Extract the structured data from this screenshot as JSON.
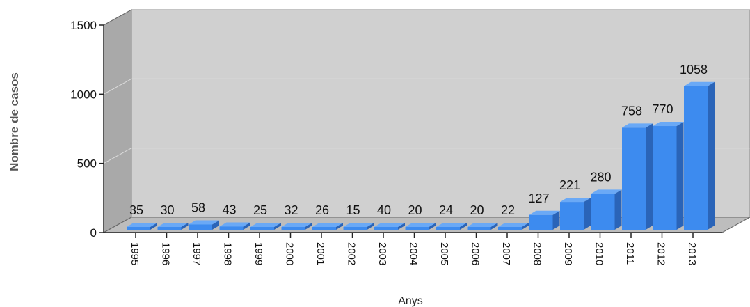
{
  "chart_data": {
    "type": "bar",
    "style": "3d",
    "categories": [
      "1995",
      "1996",
      "1997",
      "1998",
      "1999",
      "2000",
      "2001",
      "2002",
      "2003",
      "2004",
      "2005",
      "2006",
      "2007",
      "2008",
      "2009",
      "2010",
      "2011",
      "2012",
      "2013"
    ],
    "values": [
      35,
      30,
      58,
      43,
      25,
      32,
      26,
      15,
      40,
      20,
      24,
      20,
      22,
      127,
      221,
      280,
      758,
      770,
      1058
    ],
    "ylabel": "Nombre de casos",
    "xlabel": "Anys",
    "ylim": [
      0,
      1500
    ],
    "yticks": [
      0,
      500,
      1000,
      1500
    ],
    "grid": true,
    "legend": "none",
    "colors": {
      "bar_front": "#3d8bef",
      "bar_top": "#6aa9f6",
      "bar_side": "#2a64b8",
      "back_wall": "#d0d0d0",
      "side_wall": "#a9a9a9",
      "floor": "#bdbdbd"
    }
  }
}
